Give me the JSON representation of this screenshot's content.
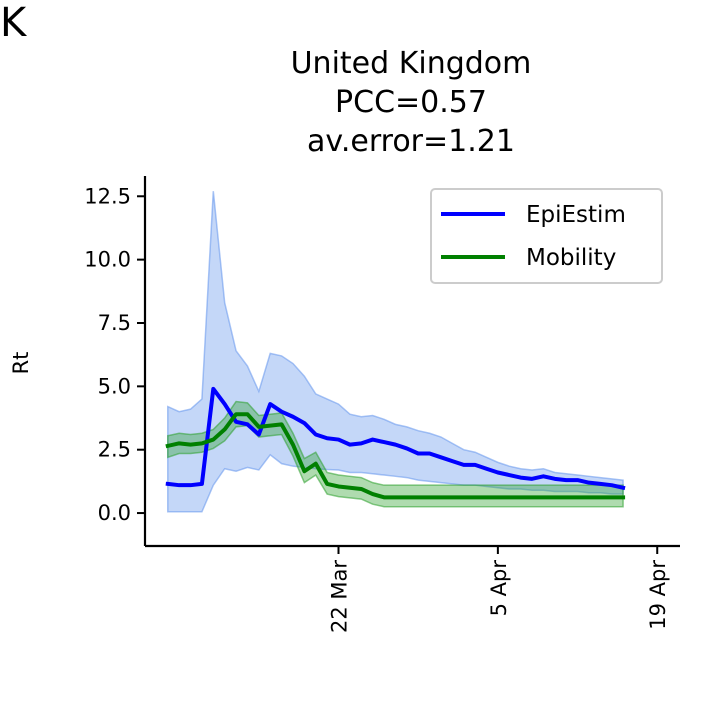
{
  "panel_label": "K",
  "chart_data": {
    "type": "line",
    "title": [
      "United Kingdom",
      "PCC=0.57",
      "av.error=1.21"
    ],
    "xlabel": "",
    "ylabel": "Rt",
    "x_start": "2020-03-07",
    "x_end": "2020-04-19",
    "xlim": [
      "2020-03-05",
      "2020-04-21"
    ],
    "ylim": [
      -1.3,
      13.3
    ],
    "x_ticks": [
      {
        "date": "2020-03-22",
        "label": "22 Mar"
      },
      {
        "date": "2020-04-05",
        "label": "5 Apr"
      },
      {
        "date": "2020-04-19",
        "label": "19 Apr"
      }
    ],
    "y_ticks": [
      {
        "value": 0.0,
        "label": "0.0"
      },
      {
        "value": 2.5,
        "label": "2.5"
      },
      {
        "value": 5.0,
        "label": "5.0"
      },
      {
        "value": 7.5,
        "label": "7.5"
      },
      {
        "value": 10.0,
        "label": "10.0"
      },
      {
        "value": 12.5,
        "label": "12.5"
      }
    ],
    "legend": {
      "position": "upper right",
      "entries": [
        "EpiEstim",
        "Mobility"
      ]
    },
    "series": [
      {
        "name": "EpiEstim",
        "color": "#0000ff",
        "band_color": "#6495ed",
        "values": [
          1.15,
          1.1,
          1.1,
          1.15,
          4.9,
          4.3,
          3.6,
          3.5,
          3.1,
          4.3,
          4.0,
          3.8,
          3.55,
          3.1,
          2.95,
          2.9,
          2.7,
          2.75,
          2.9,
          2.8,
          2.7,
          2.55,
          2.35,
          2.35,
          2.2,
          2.05,
          1.9,
          1.9,
          1.75,
          1.6,
          1.5,
          1.4,
          1.35,
          1.45,
          1.35,
          1.3,
          1.3,
          1.2,
          1.15,
          1.1,
          1.0
        ],
        "lower": [
          0.05,
          0.05,
          0.05,
          0.05,
          1.1,
          1.75,
          1.65,
          1.8,
          1.7,
          2.3,
          1.95,
          1.85,
          1.8,
          1.75,
          1.72,
          1.7,
          1.6,
          1.6,
          1.55,
          1.5,
          1.45,
          1.4,
          1.3,
          1.25,
          1.2,
          1.15,
          1.1,
          1.1,
          1.05,
          1.0,
          0.95,
          0.95,
          0.9,
          0.9,
          0.85,
          0.85,
          0.85,
          0.8,
          0.8,
          0.75,
          0.75
        ],
        "upper": [
          4.2,
          4.0,
          4.1,
          4.5,
          12.7,
          8.3,
          6.4,
          5.8,
          4.8,
          6.3,
          6.2,
          5.9,
          5.4,
          4.7,
          4.5,
          4.3,
          3.9,
          3.8,
          3.85,
          3.7,
          3.5,
          3.4,
          3.25,
          3.15,
          3.0,
          2.75,
          2.5,
          2.4,
          2.2,
          2.0,
          1.85,
          1.75,
          1.7,
          1.75,
          1.6,
          1.55,
          1.5,
          1.45,
          1.4,
          1.35,
          1.3
        ]
      },
      {
        "name": "Mobility",
        "color": "#008000",
        "band_color": "#2ca02c",
        "values": [
          2.65,
          2.75,
          2.7,
          2.75,
          2.9,
          3.3,
          3.9,
          3.9,
          3.4,
          3.45,
          3.5,
          2.7,
          1.65,
          1.95,
          1.15,
          1.05,
          1.0,
          0.95,
          0.75,
          0.62,
          0.62,
          0.62,
          0.62,
          0.62,
          0.62,
          0.62,
          0.62,
          0.62,
          0.62,
          0.62,
          0.62,
          0.62,
          0.62,
          0.62,
          0.62,
          0.62,
          0.62,
          0.62,
          0.62,
          0.62,
          0.62
        ],
        "lower": [
          2.2,
          2.35,
          2.35,
          2.4,
          2.55,
          2.85,
          3.4,
          3.45,
          3.0,
          3.05,
          3.1,
          2.25,
          1.2,
          1.5,
          0.75,
          0.65,
          0.6,
          0.55,
          0.35,
          0.25,
          0.25,
          0.25,
          0.25,
          0.25,
          0.25,
          0.25,
          0.25,
          0.25,
          0.25,
          0.25,
          0.25,
          0.25,
          0.25,
          0.25,
          0.25,
          0.25,
          0.25,
          0.25,
          0.25,
          0.25,
          0.25
        ],
        "upper": [
          3.05,
          3.15,
          3.1,
          3.15,
          3.3,
          3.75,
          4.4,
          4.35,
          3.85,
          3.9,
          3.95,
          3.15,
          2.15,
          2.4,
          1.6,
          1.5,
          1.45,
          1.4,
          1.2,
          1.1,
          1.1,
          1.1,
          1.1,
          1.1,
          1.1,
          1.1,
          1.1,
          1.1,
          1.1,
          1.1,
          1.1,
          1.1,
          1.1,
          1.1,
          1.1,
          1.1,
          1.1,
          1.1,
          1.1,
          1.1,
          1.1
        ]
      }
    ]
  }
}
